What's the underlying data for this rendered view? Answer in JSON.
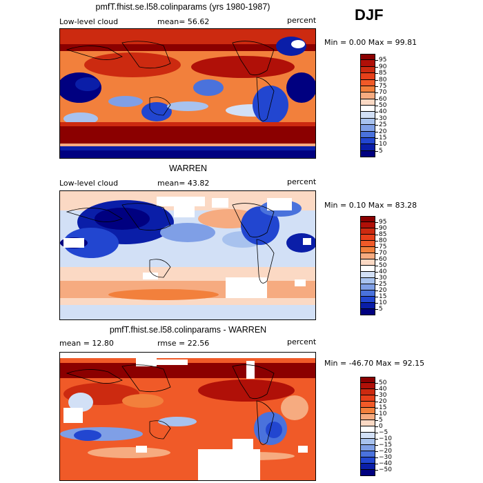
{
  "season": "DJF",
  "panels": [
    {
      "title": "pmfT.fhist.se.l58.colinparams (yrs 1980-1987)",
      "left_label": "Low-level cloud",
      "center_label": "mean=  56.62",
      "right_label": "percent",
      "minmax": "Min =    0.00 Max =   99.81",
      "colorbar": {
        "labels": [
          "95",
          "90",
          "85",
          "80",
          "75",
          "70",
          "60",
          "50",
          "40",
          "30",
          "25",
          "20",
          "15",
          "10",
          "5"
        ],
        "colors": [
          "#8b0000",
          "#b01008",
          "#cc2a10",
          "#e6401a",
          "#f05a28",
          "#f2803c",
          "#f6ab80",
          "#fbd9c4",
          "#ffffff",
          "#d2e0f6",
          "#a8c2ee",
          "#7f9fe6",
          "#4a72dc",
          "#2246d0",
          "#0a1ea8",
          "#000080"
        ]
      }
    },
    {
      "title": "WARREN",
      "left_label": "Low-level cloud",
      "center_label": "mean=  43.82",
      "right_label": "percent",
      "minmax": "Min =    0.10 Max =   83.28",
      "colorbar": {
        "labels": [
          "95",
          "90",
          "85",
          "80",
          "75",
          "70",
          "60",
          "50",
          "40",
          "30",
          "25",
          "20",
          "15",
          "10",
          "5"
        ],
        "colors": [
          "#8b0000",
          "#b01008",
          "#cc2a10",
          "#e6401a",
          "#f05a28",
          "#f2803c",
          "#f6ab80",
          "#fbd9c4",
          "#ffffff",
          "#d2e0f6",
          "#a8c2ee",
          "#7f9fe6",
          "#4a72dc",
          "#2246d0",
          "#0a1ea8",
          "#000080"
        ]
      }
    },
    {
      "title": "pmfT.fhist.se.l58.colinparams - WARREN",
      "left_label": "mean =   12.80",
      "center_label": "rmse =   22.56",
      "right_label": "percent",
      "minmax": "Min = -46.70 Max =   92.15",
      "colorbar": {
        "labels": [
          "50",
          "40",
          "30",
          "20",
          "15",
          "10",
          "5",
          "0",
          "−5",
          "−10",
          "−15",
          "−20",
          "−30",
          "−40",
          "−50"
        ],
        "colors": [
          "#8b0000",
          "#b01008",
          "#cc2a10",
          "#e6401a",
          "#f05a28",
          "#f2803c",
          "#f6ab80",
          "#fbd9c4",
          "#ffffff",
          "#d2e0f6",
          "#a8c2ee",
          "#7f9fe6",
          "#4a72dc",
          "#2246d0",
          "#0a1ea8",
          "#000080"
        ]
      }
    }
  ]
}
